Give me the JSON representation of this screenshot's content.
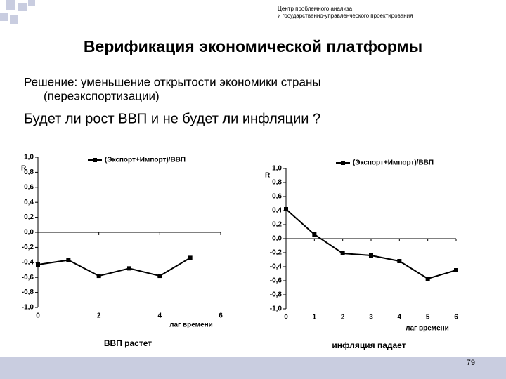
{
  "header": {
    "org": [
      "Центр проблемного анализа",
      "и государственно-управленческого проектирования"
    ]
  },
  "title": "Верификация экономической платформы",
  "solution": [
    "Решение: уменьшение открытости экономики страны",
    "(переэкспортизации)"
  ],
  "question": "Будет ли рост ВВП и не будет ли инфляции ?",
  "page_number": 79,
  "chart_data": [
    {
      "type": "line",
      "y_label": "R",
      "x_label": "лаг времени",
      "caption": "ВВП растет",
      "x": [
        0,
        1,
        2,
        3,
        4,
        5
      ],
      "series": [
        {
          "name": "(Экспорт+Импорт)/ВВП",
          "color": "#000000",
          "values": [
            -0.43,
            -0.37,
            -0.58,
            -0.48,
            -0.58,
            -0.34
          ]
        }
      ],
      "xlim": [
        0,
        6
      ],
      "xticks": [
        0,
        2,
        4,
        6
      ],
      "ylim": [
        -1.0,
        1.0
      ],
      "yticks": [
        {
          "value": 1.0,
          "label": "1,0"
        },
        {
          "value": 0.8,
          "label": "0,8"
        },
        {
          "value": 0.6,
          "label": "0,6"
        },
        {
          "value": 0.4,
          "label": "0,4"
        },
        {
          "value": 0.2,
          "label": "0,2"
        },
        {
          "value": 0.0,
          "label": "0,0"
        },
        {
          "value": -0.2,
          "label": "-0,2"
        },
        {
          "value": -0.4,
          "label": "-0,4"
        },
        {
          "value": -0.6,
          "label": "-0,6"
        },
        {
          "value": -0.8,
          "label": "-0,8"
        },
        {
          "value": -1.0,
          "label": "-1,0"
        }
      ],
      "grid": false
    },
    {
      "type": "line",
      "y_label": "R",
      "x_label": "лаг времени",
      "caption": "инфляция падает",
      "x": [
        0,
        1,
        2,
        3,
        4,
        5,
        6
      ],
      "series": [
        {
          "name": "(Экспорт+Импорт)/ВВП",
          "color": "#000000",
          "values": [
            0.42,
            0.06,
            -0.21,
            -0.24,
            -0.32,
            -0.57,
            -0.45
          ]
        }
      ],
      "xlim": [
        0,
        6
      ],
      "xticks": [
        0,
        1,
        2,
        3,
        4,
        5,
        6
      ],
      "ylim": [
        -1.0,
        1.0
      ],
      "yticks": [
        {
          "value": 1.0,
          "label": "1,0"
        },
        {
          "value": 0.8,
          "label": "0,8"
        },
        {
          "value": 0.6,
          "label": "0,6"
        },
        {
          "value": 0.4,
          "label": "0,4"
        },
        {
          "value": 0.2,
          "label": "0,2"
        },
        {
          "value": 0.0,
          "label": "0,0"
        },
        {
          "value": -0.2,
          "label": "-0,2"
        },
        {
          "value": -0.4,
          "label": "-0,4"
        },
        {
          "value": -0.6,
          "label": "-0,6"
        },
        {
          "value": -0.8,
          "label": "-0,8"
        },
        {
          "value": -1.0,
          "label": "-1,0"
        }
      ],
      "grid": false
    }
  ]
}
